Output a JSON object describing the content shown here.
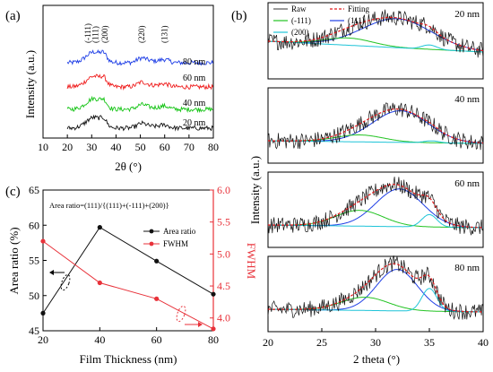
{
  "figure": {
    "panel_labels": {
      "a": "(a)",
      "b": "(b)",
      "c": "(c)"
    }
  },
  "chart_data": [
    {
      "panel": "(a)",
      "type": "line",
      "xlabel": "2θ (°)",
      "ylabel": "Intensity (a.u.)",
      "xlim": [
        10,
        80
      ],
      "xticks": [
        10,
        20,
        30,
        40,
        50,
        60,
        70,
        80
      ],
      "peak_labels": [
        {
          "text": "(-111)",
          "x": 28.5
        },
        {
          "text": "(111)",
          "x": 31.5
        },
        {
          "text": "(200)",
          "x": 35.5
        },
        {
          "text": "(220)",
          "x": 50.5
        },
        {
          "text": "(131)",
          "x": 60
        }
      ],
      "series": [
        {
          "name": "80 nm",
          "color": "#1f3fe6"
        },
        {
          "name": "60 nm",
          "color": "#ef1c1c"
        },
        {
          "name": "40 nm",
          "color": "#16c416"
        },
        {
          "name": "20 nm",
          "color": "#111111"
        }
      ],
      "peak_centers_deg": [
        31,
        35,
        50,
        60
      ]
    },
    {
      "panel": "(b)",
      "type": "line",
      "xlabel": "2 theta (°)",
      "ylabel": "Intensity (a.u.)",
      "xlim": [
        20,
        40
      ],
      "xticks": [
        20,
        25,
        30,
        35,
        40
      ],
      "legend": {
        "placement": "top-left",
        "items": [
          {
            "label": "Raw",
            "color": "#555555",
            "style": "solid"
          },
          {
            "label": "Fitting",
            "color": "#e0191b",
            "style": "dashed"
          },
          {
            "label": "(-111)",
            "color": "#22c322",
            "style": "solid"
          },
          {
            "label": "(111)",
            "color": "#1f3fe6",
            "style": "solid"
          },
          {
            "label": "(200)",
            "color": "#1ec4d8",
            "style": "solid"
          }
        ]
      },
      "subplots": [
        {
          "label": "20 nm",
          "peaks": {
            "m111": 27.5,
            "p111": 32,
            "p200": 35
          }
        },
        {
          "label": "40 nm",
          "peaks": {
            "m111": 28.5,
            "p111": 32.3,
            "p200": 35.2
          }
        },
        {
          "label": "60 nm",
          "peaks": {
            "m111": 28.5,
            "p111": 32.2,
            "p200": 35.0
          }
        },
        {
          "label": "80 nm",
          "peaks": {
            "m111": 29.0,
            "p111": 32.0,
            "p200": 35.0
          }
        }
      ]
    },
    {
      "panel": "(c)",
      "type": "line",
      "annotation": "Area ratio=(111)/{(111)+(-111)+(200)}",
      "xlabel": "Film Thickness (nm)",
      "ylabel_left": "Area ratio (%)",
      "ylabel_right": "FWHM",
      "x": [
        20,
        40,
        60,
        80
      ],
      "xlim": [
        20,
        80
      ],
      "xticks": [
        20,
        40,
        60,
        80
      ],
      "ylim_left": [
        45,
        65
      ],
      "yticks_left": [
        45,
        50,
        55,
        60,
        65
      ],
      "ylim_right": [
        3.8,
        6.0
      ],
      "yticks_right": [
        4.0,
        4.5,
        5.0,
        5.5,
        6.0
      ],
      "series": [
        {
          "name": "Area ratio",
          "axis": "left",
          "color": "#111111",
          "values": [
            47.5,
            59.7,
            54.9,
            50.2
          ]
        },
        {
          "name": "FWHM",
          "axis": "right",
          "color": "#e8323a",
          "values": [
            5.2,
            4.55,
            4.3,
            3.83
          ]
        }
      ],
      "legend_placement": "right"
    }
  ]
}
